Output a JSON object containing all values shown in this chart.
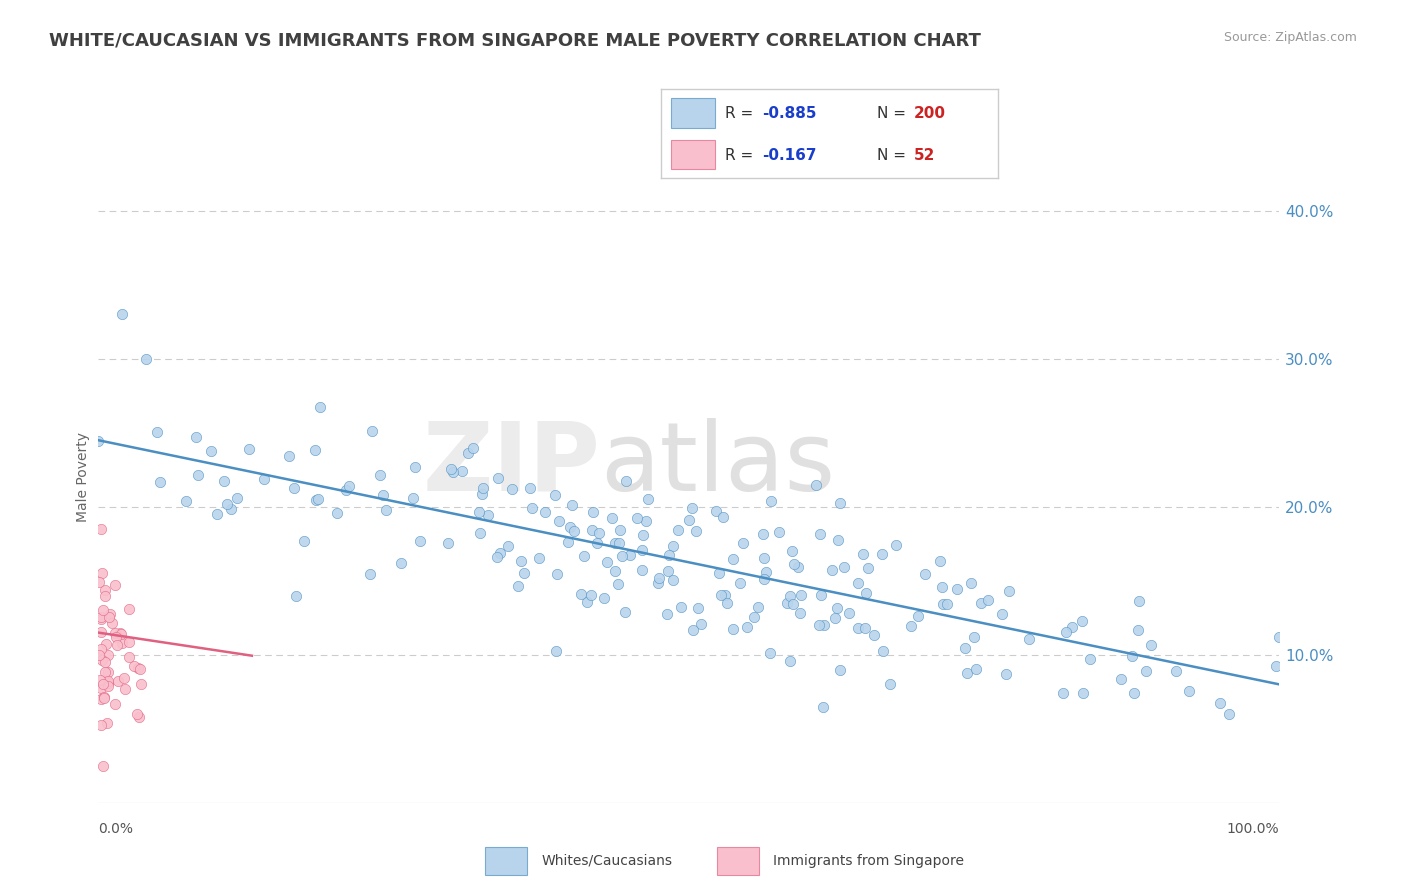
{
  "title": "WHITE/CAUCASIAN VS IMMIGRANTS FROM SINGAPORE MALE POVERTY CORRELATION CHART",
  "source": "Source: ZipAtlas.com",
  "ylabel": "Male Poverty",
  "blue_R": -0.885,
  "blue_N": 200,
  "pink_R": -0.167,
  "pink_N": 52,
  "blue_dot_color": "#b8d4ec",
  "blue_line_color": "#4a8ec2",
  "pink_dot_color": "#f9bfcc",
  "pink_line_color": "#e06080",
  "right_yticks": [
    0.1,
    0.2,
    0.3,
    0.4
  ],
  "right_yticklabels": [
    "10.0%",
    "20.0%",
    "30.0%",
    "40.0%"
  ],
  "xlim": [
    0.0,
    1.0
  ],
  "ylim": [
    0.0,
    0.44
  ],
  "background_color": "#ffffff",
  "grid_color": "#cccccc",
  "title_color": "#404040",
  "title_fontsize": 13.0,
  "legend_R_color": "#1a3ecc",
  "legend_N_color": "#cc2222",
  "blue_slope": -0.165,
  "blue_intercept": 0.245,
  "pink_slope": -0.12,
  "pink_intercept": 0.115,
  "pink_line_xmax": 0.13
}
